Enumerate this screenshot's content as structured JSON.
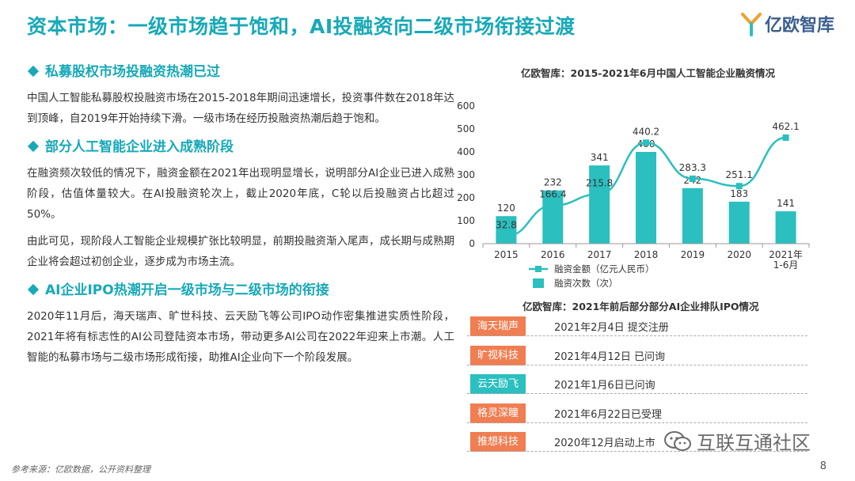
{
  "header": {
    "title": "资本市场：一级市场趋于饱和，AI投融资向二级市场衔接过渡",
    "logo_text": "亿欧智库"
  },
  "left": {
    "section1": {
      "heading": "私募股权市场投融资热潮已过",
      "para": "中国人工智能私募股权投融资市场在2015-2018年期间迅速增长，投资事件数在2018年达到顶峰，自2019年开始持续下滑。一级市场在经历投融资热潮后趋于饱和。"
    },
    "section2": {
      "heading": "部分人工智能企业进入成熟阶段",
      "para1": "在融资频次较低的情况下，融资金额在2021年出现明显增长，说明部分AI企业已进入成熟阶段，估值体量较大。在AI投融资轮次上，截止2020年底，C轮以后投融资占比超过50%。",
      "para2": "由此可见，现阶段人工智能企业规模扩张比较明显，前期投融资渐入尾声，成长期与成熟期企业将会超过初创企业，逐步成为市场主流。"
    },
    "section3": {
      "heading": "AI企业IPO热潮开启一级市场与二级市场的衔接",
      "para": "2020年11月后，海天瑞声、旷世科技、云天励飞等公司IPO动作密集推进实质性阶段，2021年将有标志性的AI公司登陆资本市场，带动更多AI公司在2022年迎来上市潮。人工智能的私募市场与二级市场形成衔接，助推AI企业向下一个阶段发展。"
    }
  },
  "chart_title": "亿欧智库：2015-2021年6月中国人工智能企业融资情况",
  "chart_data": {
    "type": "bar",
    "categories": [
      "2015",
      "2016",
      "2017",
      "2018",
      "2019",
      "2020",
      "2021年 1-6月"
    ],
    "category_lines": [
      [
        "2015"
      ],
      [
        "2016"
      ],
      [
        "2017"
      ],
      [
        "2018"
      ],
      [
        "2019"
      ],
      [
        "2020"
      ],
      [
        "2021年",
        "1-6月"
      ]
    ],
    "series": [
      {
        "name": "融资次数（次）",
        "type": "bar",
        "values": [
          120,
          232,
          341,
          400,
          242,
          183,
          141
        ]
      },
      {
        "name": "融资金额（亿元人民币）",
        "type": "line",
        "values": [
          32.8,
          166.4,
          215.8,
          440.2,
          283.3,
          251.1,
          462.1
        ]
      }
    ],
    "y_ticks": [
      "0",
      "100",
      "200",
      "300",
      "400",
      "500",
      "600"
    ],
    "ylim": [
      0,
      600
    ],
    "legend_position": "bottom",
    "grid": false,
    "colors": {
      "bar": "#2bbfbf",
      "line": "#2bbfbf"
    }
  },
  "ipo": {
    "title": "亿欧智库：2021年前后部分部分AI企业排队IPO情况",
    "items": [
      {
        "company": "海天瑞声",
        "status": "2021年2月4日 提交注册",
        "color": "#f07e52"
      },
      {
        "company": "旷视科技",
        "status": "2021年4月12日 已问询",
        "color": "#f07e52"
      },
      {
        "company": "云天励飞",
        "status": "2021年1月6日已问询",
        "color": "#2bbfbf"
      },
      {
        "company": "格灵深瞳",
        "status": "2021年6月22日已受理",
        "color": "#f07e52"
      },
      {
        "company": "推想科技",
        "status": "2020年12月启动上市",
        "color": "#f07e52"
      }
    ]
  },
  "footer": {
    "source": "参考来源：亿欧数据，公开资料整理",
    "page": "8",
    "watermark": "互联互通社区"
  }
}
